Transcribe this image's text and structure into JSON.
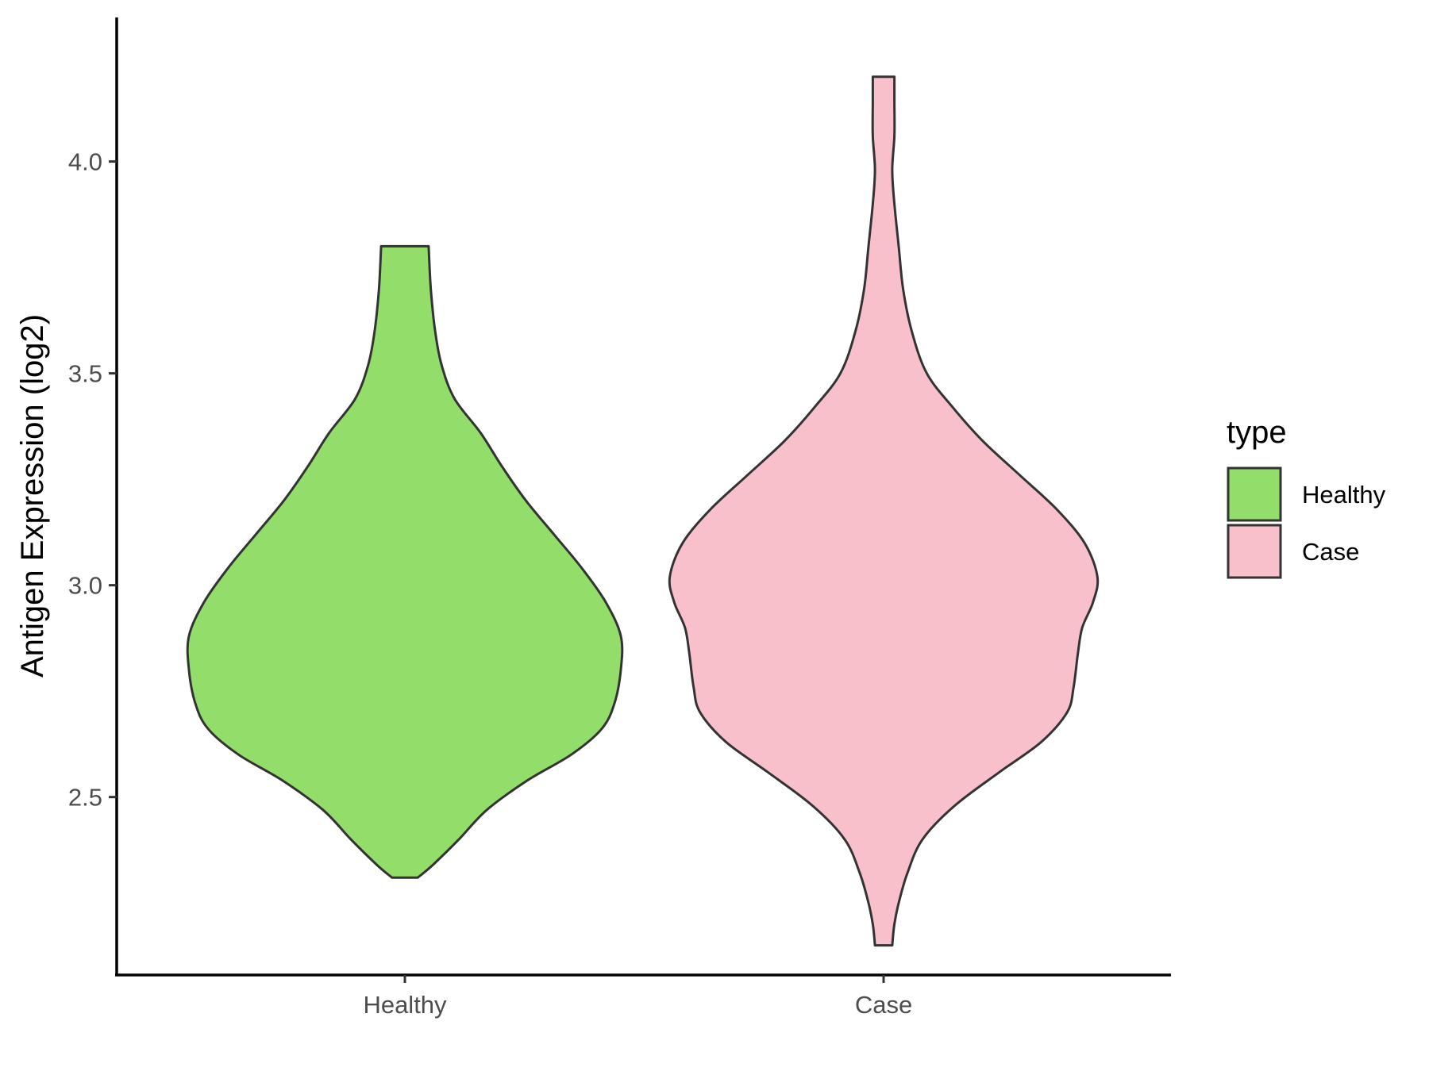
{
  "chart_data": {
    "type": "violin",
    "title": "",
    "xlabel": "",
    "ylabel": "Antigen Expression (log2)",
    "ylim": [
      2.08,
      4.34
    ],
    "yticks": [
      2.5,
      3.0,
      3.5,
      4.0
    ],
    "ytick_labels": [
      "2.5",
      "3.0",
      "3.5",
      "4.0"
    ],
    "categories": [
      "Healthy",
      "Case"
    ],
    "grid": false,
    "legend": {
      "title": "type",
      "position": "right",
      "entries": [
        {
          "label": "Healthy",
          "color": "#93dd6a"
        },
        {
          "label": "Case",
          "color": "#f8c0cb"
        }
      ]
    },
    "series": [
      {
        "category": "Healthy",
        "color": "#93dd6a",
        "min": 2.31,
        "max": 3.8,
        "density": [
          [
            2.31,
            0.06
          ],
          [
            2.34,
            0.13
          ],
          [
            2.4,
            0.25
          ],
          [
            2.47,
            0.38
          ],
          [
            2.54,
            0.57
          ],
          [
            2.6,
            0.77
          ],
          [
            2.66,
            0.91
          ],
          [
            2.72,
            0.97
          ],
          [
            2.8,
            1.0
          ],
          [
            2.88,
            1.0
          ],
          [
            2.96,
            0.93
          ],
          [
            3.04,
            0.82
          ],
          [
            3.12,
            0.69
          ],
          [
            3.2,
            0.56
          ],
          [
            3.28,
            0.45
          ],
          [
            3.36,
            0.35
          ],
          [
            3.44,
            0.23
          ],
          [
            3.52,
            0.17
          ],
          [
            3.6,
            0.14
          ],
          [
            3.7,
            0.12
          ],
          [
            3.8,
            0.11
          ]
        ]
      },
      {
        "category": "Case",
        "color": "#f8c0cb",
        "min": 2.15,
        "max": 4.2,
        "density": [
          [
            2.15,
            0.04
          ],
          [
            2.2,
            0.05
          ],
          [
            2.25,
            0.07
          ],
          [
            2.32,
            0.11
          ],
          [
            2.4,
            0.18
          ],
          [
            2.48,
            0.33
          ],
          [
            2.56,
            0.54
          ],
          [
            2.63,
            0.73
          ],
          [
            2.7,
            0.85
          ],
          [
            2.76,
            0.88
          ],
          [
            2.84,
            0.9
          ],
          [
            2.9,
            0.92
          ],
          [
            2.96,
            0.97
          ],
          [
            3.02,
            0.99
          ],
          [
            3.1,
            0.93
          ],
          [
            3.18,
            0.8
          ],
          [
            3.26,
            0.63
          ],
          [
            3.34,
            0.46
          ],
          [
            3.42,
            0.32
          ],
          [
            3.5,
            0.2
          ],
          [
            3.6,
            0.13
          ],
          [
            3.7,
            0.09
          ],
          [
            3.8,
            0.07
          ],
          [
            3.9,
            0.05
          ],
          [
            3.98,
            0.04
          ],
          [
            4.06,
            0.05
          ],
          [
            4.14,
            0.05
          ],
          [
            4.2,
            0.05
          ]
        ]
      }
    ]
  }
}
